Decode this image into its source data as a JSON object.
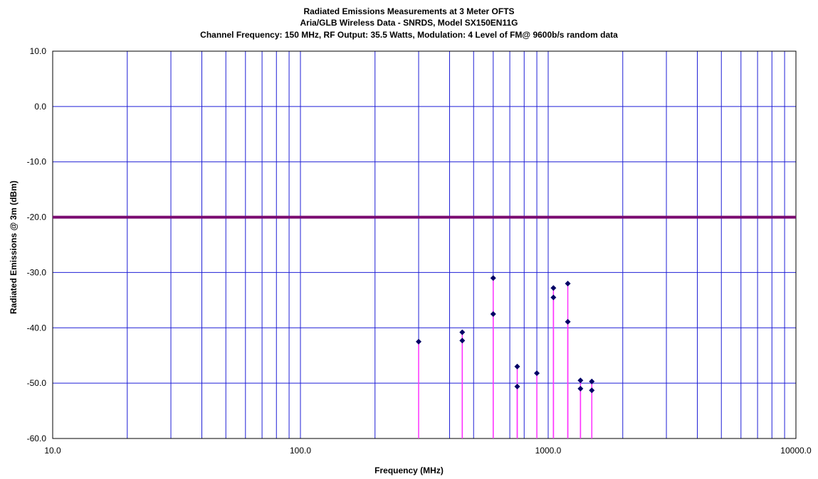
{
  "chart_data": {
    "type": "scatter",
    "title_lines": [
      "Radiated Emissions Measurements at 3 Meter OFTS",
      "Aria/GLB Wireless Data - SNRDS, Model SX150EN11G",
      "Channel Frequency: 150 MHz, RF Output: 35.5 Watts, Modulation: 4 Level of FM@ 9600b/s random data"
    ],
    "xlabel": "Frequency (MHz)",
    "ylabel": "Radiated Emissions @ 3m (dBm)",
    "x_scale": "log",
    "xlim": [
      10,
      10000
    ],
    "ylim": [
      -60,
      10
    ],
    "x_ticks": [
      10,
      100,
      1000,
      10000
    ],
    "x_tick_labels": [
      "10.0",
      "100.0",
      "1000.0",
      "10000.0"
    ],
    "y_ticks": [
      10,
      0,
      -10,
      -20,
      -30,
      -40,
      -50,
      -60
    ],
    "y_tick_labels": [
      "10.0",
      "0.0",
      "-10.0",
      "-20.0",
      "-30.0",
      "-40.0",
      "-50.0",
      "-60.0"
    ],
    "grid": true,
    "limit_line": {
      "y": -20
    },
    "series": [
      {
        "values": [
          {
            "x": 300,
            "y": -42.5
          },
          {
            "x": 450,
            "y": -40.8
          },
          {
            "x": 450,
            "y": -42.3
          },
          {
            "x": 600,
            "y": -31.0
          },
          {
            "x": 600,
            "y": -37.5
          },
          {
            "x": 750,
            "y": -50.6
          },
          {
            "x": 750,
            "y": -47.0
          },
          {
            "x": 900,
            "y": -48.2
          },
          {
            "x": 1050,
            "y": -32.8
          },
          {
            "x": 1050,
            "y": -34.5
          },
          {
            "x": 1200,
            "y": -32.0
          },
          {
            "x": 1200,
            "y": -38.9
          },
          {
            "x": 1350,
            "y": -51.0
          },
          {
            "x": 1350,
            "y": -49.5
          },
          {
            "x": 1500,
            "y": -49.7
          },
          {
            "x": 1500,
            "y": -51.3
          }
        ]
      }
    ],
    "colors": {
      "grid": "#1f1fd6",
      "limit_line": "#7a0a70",
      "stems": "#ff33ff",
      "markers": "#000066",
      "axes": "#000000"
    }
  }
}
